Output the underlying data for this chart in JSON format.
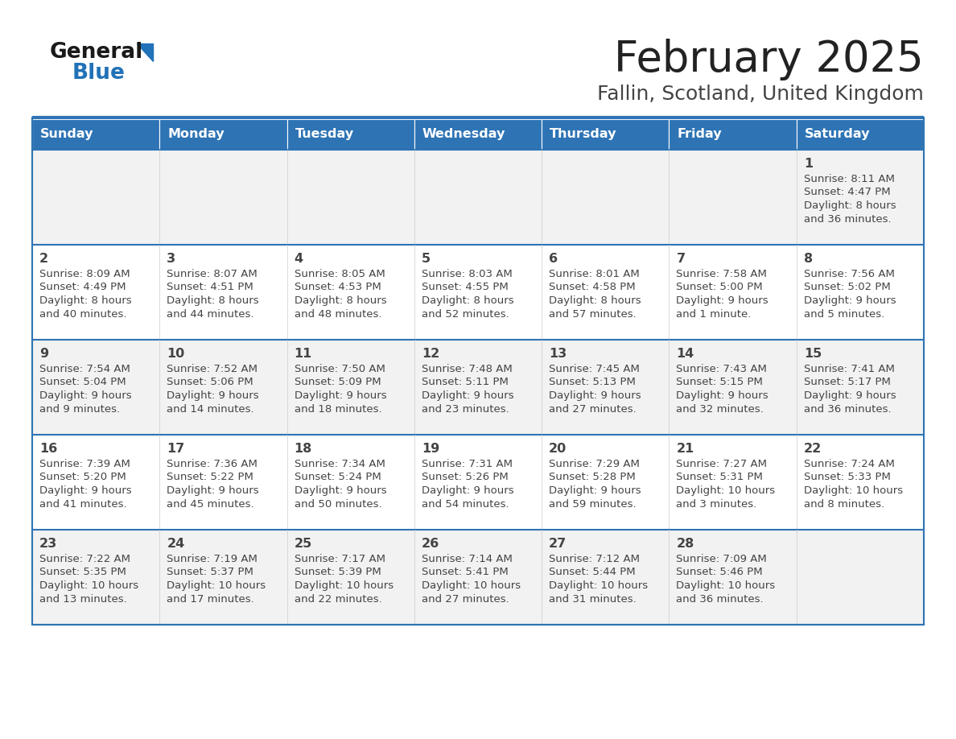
{
  "title": "February 2025",
  "subtitle": "Fallin, Scotland, United Kingdom",
  "header_bg": "#2E74B5",
  "header_text_color": "#FFFFFF",
  "row_bg_odd": "#F2F2F2",
  "row_bg_even": "#FFFFFF",
  "separator_color": "#2E74B5",
  "text_color": "#444444",
  "days_of_week": [
    "Sunday",
    "Monday",
    "Tuesday",
    "Wednesday",
    "Thursday",
    "Friday",
    "Saturday"
  ],
  "calendar_data": [
    [
      null,
      null,
      null,
      null,
      null,
      null,
      {
        "day": 1,
        "sunrise": "8:11 AM",
        "sunset": "4:47 PM",
        "daylight_line1": "Daylight: 8 hours",
        "daylight_line2": "and 36 minutes."
      }
    ],
    [
      {
        "day": 2,
        "sunrise": "8:09 AM",
        "sunset": "4:49 PM",
        "daylight_line1": "Daylight: 8 hours",
        "daylight_line2": "and 40 minutes."
      },
      {
        "day": 3,
        "sunrise": "8:07 AM",
        "sunset": "4:51 PM",
        "daylight_line1": "Daylight: 8 hours",
        "daylight_line2": "and 44 minutes."
      },
      {
        "day": 4,
        "sunrise": "8:05 AM",
        "sunset": "4:53 PM",
        "daylight_line1": "Daylight: 8 hours",
        "daylight_line2": "and 48 minutes."
      },
      {
        "day": 5,
        "sunrise": "8:03 AM",
        "sunset": "4:55 PM",
        "daylight_line1": "Daylight: 8 hours",
        "daylight_line2": "and 52 minutes."
      },
      {
        "day": 6,
        "sunrise": "8:01 AM",
        "sunset": "4:58 PM",
        "daylight_line1": "Daylight: 8 hours",
        "daylight_line2": "and 57 minutes."
      },
      {
        "day": 7,
        "sunrise": "7:58 AM",
        "sunset": "5:00 PM",
        "daylight_line1": "Daylight: 9 hours",
        "daylight_line2": "and 1 minute."
      },
      {
        "day": 8,
        "sunrise": "7:56 AM",
        "sunset": "5:02 PM",
        "daylight_line1": "Daylight: 9 hours",
        "daylight_line2": "and 5 minutes."
      }
    ],
    [
      {
        "day": 9,
        "sunrise": "7:54 AM",
        "sunset": "5:04 PM",
        "daylight_line1": "Daylight: 9 hours",
        "daylight_line2": "and 9 minutes."
      },
      {
        "day": 10,
        "sunrise": "7:52 AM",
        "sunset": "5:06 PM",
        "daylight_line1": "Daylight: 9 hours",
        "daylight_line2": "and 14 minutes."
      },
      {
        "day": 11,
        "sunrise": "7:50 AM",
        "sunset": "5:09 PM",
        "daylight_line1": "Daylight: 9 hours",
        "daylight_line2": "and 18 minutes."
      },
      {
        "day": 12,
        "sunrise": "7:48 AM",
        "sunset": "5:11 PM",
        "daylight_line1": "Daylight: 9 hours",
        "daylight_line2": "and 23 minutes."
      },
      {
        "day": 13,
        "sunrise": "7:45 AM",
        "sunset": "5:13 PM",
        "daylight_line1": "Daylight: 9 hours",
        "daylight_line2": "and 27 minutes."
      },
      {
        "day": 14,
        "sunrise": "7:43 AM",
        "sunset": "5:15 PM",
        "daylight_line1": "Daylight: 9 hours",
        "daylight_line2": "and 32 minutes."
      },
      {
        "day": 15,
        "sunrise": "7:41 AM",
        "sunset": "5:17 PM",
        "daylight_line1": "Daylight: 9 hours",
        "daylight_line2": "and 36 minutes."
      }
    ],
    [
      {
        "day": 16,
        "sunrise": "7:39 AM",
        "sunset": "5:20 PM",
        "daylight_line1": "Daylight: 9 hours",
        "daylight_line2": "and 41 minutes."
      },
      {
        "day": 17,
        "sunrise": "7:36 AM",
        "sunset": "5:22 PM",
        "daylight_line1": "Daylight: 9 hours",
        "daylight_line2": "and 45 minutes."
      },
      {
        "day": 18,
        "sunrise": "7:34 AM",
        "sunset": "5:24 PM",
        "daylight_line1": "Daylight: 9 hours",
        "daylight_line2": "and 50 minutes."
      },
      {
        "day": 19,
        "sunrise": "7:31 AM",
        "sunset": "5:26 PM",
        "daylight_line1": "Daylight: 9 hours",
        "daylight_line2": "and 54 minutes."
      },
      {
        "day": 20,
        "sunrise": "7:29 AM",
        "sunset": "5:28 PM",
        "daylight_line1": "Daylight: 9 hours",
        "daylight_line2": "and 59 minutes."
      },
      {
        "day": 21,
        "sunrise": "7:27 AM",
        "sunset": "5:31 PM",
        "daylight_line1": "Daylight: 10 hours",
        "daylight_line2": "and 3 minutes."
      },
      {
        "day": 22,
        "sunrise": "7:24 AM",
        "sunset": "5:33 PM",
        "daylight_line1": "Daylight: 10 hours",
        "daylight_line2": "and 8 minutes."
      }
    ],
    [
      {
        "day": 23,
        "sunrise": "7:22 AM",
        "sunset": "5:35 PM",
        "daylight_line1": "Daylight: 10 hours",
        "daylight_line2": "and 13 minutes."
      },
      {
        "day": 24,
        "sunrise": "7:19 AM",
        "sunset": "5:37 PM",
        "daylight_line1": "Daylight: 10 hours",
        "daylight_line2": "and 17 minutes."
      },
      {
        "day": 25,
        "sunrise": "7:17 AM",
        "sunset": "5:39 PM",
        "daylight_line1": "Daylight: 10 hours",
        "daylight_line2": "and 22 minutes."
      },
      {
        "day": 26,
        "sunrise": "7:14 AM",
        "sunset": "5:41 PM",
        "daylight_line1": "Daylight: 10 hours",
        "daylight_line2": "and 27 minutes."
      },
      {
        "day": 27,
        "sunrise": "7:12 AM",
        "sunset": "5:44 PM",
        "daylight_line1": "Daylight: 10 hours",
        "daylight_line2": "and 31 minutes."
      },
      {
        "day": 28,
        "sunrise": "7:09 AM",
        "sunset": "5:46 PM",
        "daylight_line1": "Daylight: 10 hours",
        "daylight_line2": "and 36 minutes."
      },
      null
    ]
  ],
  "logo_color_general": "#1a1a1a",
  "logo_color_blue": "#2172B8"
}
